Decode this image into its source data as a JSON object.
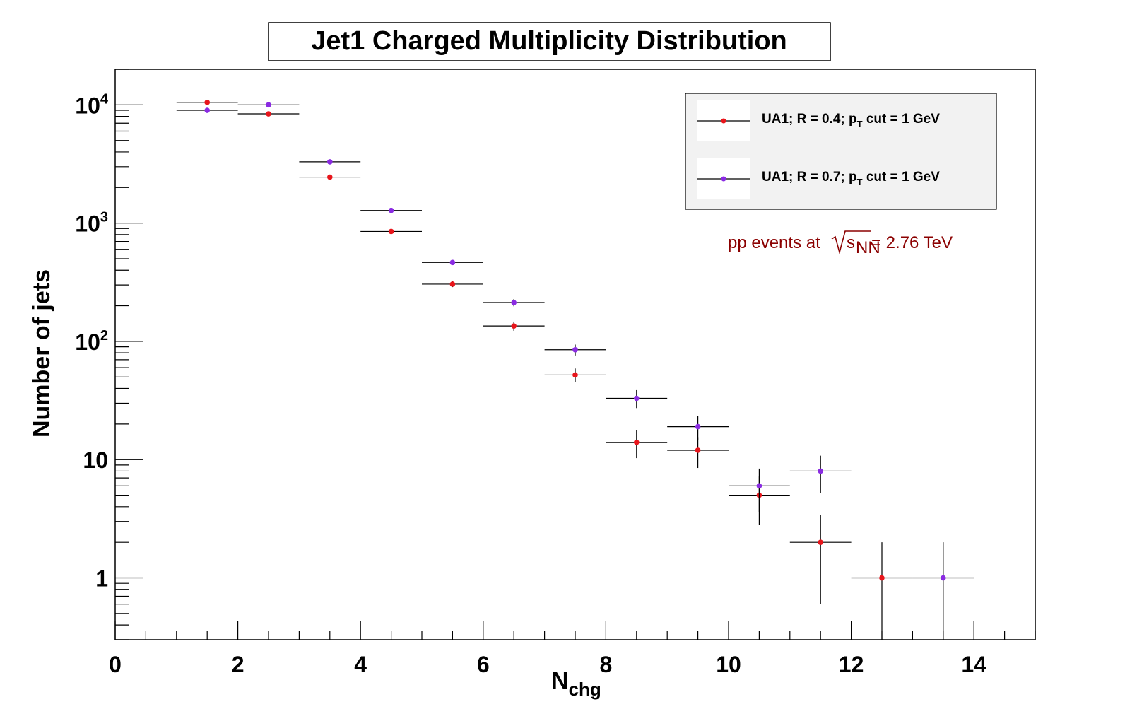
{
  "chart_data": {
    "type": "scatter",
    "title": "Jet1 Charged Multiplicity Distribution",
    "xlabel_main": "N",
    "xlabel_sub": "chg",
    "ylabel": "Number of jets",
    "xlim": [
      0,
      15
    ],
    "ylim": [
      0.3,
      20000
    ],
    "yscale": "log",
    "grid": false,
    "legend_position": "top-right",
    "x_tick_labels": [
      "0",
      "2",
      "4",
      "6",
      "8",
      "10",
      "12",
      "14"
    ],
    "y_tick_labels": [
      {
        "base": "1",
        "exp": ""
      },
      {
        "base": "10",
        "exp": ""
      },
      {
        "base": "10",
        "exp": "2"
      },
      {
        "base": "10",
        "exp": "3"
      },
      {
        "base": "10",
        "exp": "4"
      }
    ],
    "series": [
      {
        "name_pre": "UA1; R = 0.4; p",
        "name_sub": "T",
        "name_post": " cut = 1 GeV",
        "color": "#e8151b",
        "points": [
          {
            "x": 1.5,
            "y": 10500,
            "xerr": 0.5,
            "ylo": 10400,
            "yhi": 10600
          },
          {
            "x": 2.5,
            "y": 8400,
            "xerr": 0.5,
            "ylo": 8300,
            "yhi": 8500
          },
          {
            "x": 3.5,
            "y": 2450,
            "xerr": 0.5,
            "ylo": 2400,
            "yhi": 2500
          },
          {
            "x": 4.5,
            "y": 850,
            "xerr": 0.5,
            "ylo": 820,
            "yhi": 880
          },
          {
            "x": 5.5,
            "y": 305,
            "xerr": 0.5,
            "ylo": 288,
            "yhi": 322
          },
          {
            "x": 6.5,
            "y": 135,
            "xerr": 0.5,
            "ylo": 123,
            "yhi": 147
          },
          {
            "x": 7.5,
            "y": 52,
            "xerr": 0.5,
            "ylo": 45,
            "yhi": 59
          },
          {
            "x": 8.5,
            "y": 14,
            "xerr": 0.5,
            "ylo": 10.3,
            "yhi": 17.7
          },
          {
            "x": 9.5,
            "y": 12,
            "xerr": 0.5,
            "ylo": 8.5,
            "yhi": 15.5
          },
          {
            "x": 10.5,
            "y": 5,
            "xerr": 0.5,
            "ylo": 2.8,
            "yhi": 7.2
          },
          {
            "x": 11.5,
            "y": 2,
            "xerr": 0.5,
            "ylo": 0.6,
            "yhi": 3.4
          },
          {
            "x": 12.5,
            "y": 1,
            "xerr": 0.5,
            "ylo": 0.3,
            "yhi": 2
          }
        ]
      },
      {
        "name_pre": "UA1; R = 0.7; p",
        "name_sub": "T",
        "name_post": " cut = 1 GeV",
        "color": "#8a2be2",
        "points": [
          {
            "x": 1.5,
            "y": 9000,
            "xerr": 0.5,
            "ylo": 8900,
            "yhi": 9100
          },
          {
            "x": 2.5,
            "y": 10000,
            "xerr": 0.5,
            "ylo": 9900,
            "yhi": 10100
          },
          {
            "x": 3.5,
            "y": 3300,
            "xerr": 0.5,
            "ylo": 3240,
            "yhi": 3360
          },
          {
            "x": 4.5,
            "y": 1280,
            "xerr": 0.5,
            "ylo": 1244,
            "yhi": 1316
          },
          {
            "x": 5.5,
            "y": 465,
            "xerr": 0.5,
            "ylo": 443,
            "yhi": 487
          },
          {
            "x": 6.5,
            "y": 213,
            "xerr": 0.5,
            "ylo": 198,
            "yhi": 228
          },
          {
            "x": 7.5,
            "y": 85,
            "xerr": 0.5,
            "ylo": 76,
            "yhi": 94
          },
          {
            "x": 8.5,
            "y": 33,
            "xerr": 0.5,
            "ylo": 27.3,
            "yhi": 38.7
          },
          {
            "x": 9.5,
            "y": 19,
            "xerr": 0.5,
            "ylo": 14.6,
            "yhi": 23.4
          },
          {
            "x": 10.5,
            "y": 6,
            "xerr": 0.5,
            "ylo": 3.6,
            "yhi": 8.4
          },
          {
            "x": 11.5,
            "y": 8,
            "xerr": 0.5,
            "ylo": 5.2,
            "yhi": 10.8
          },
          {
            "x": 13.5,
            "y": 1,
            "xerr": 0.5,
            "ylo": 0.3,
            "yhi": 2
          }
        ]
      }
    ],
    "annotation": {
      "text_pre": "pp events at",
      "sqrt_base": "s",
      "sqrt_sub": "NN",
      "text_post": " = 2.76 TeV",
      "color": "#8b0000"
    }
  }
}
